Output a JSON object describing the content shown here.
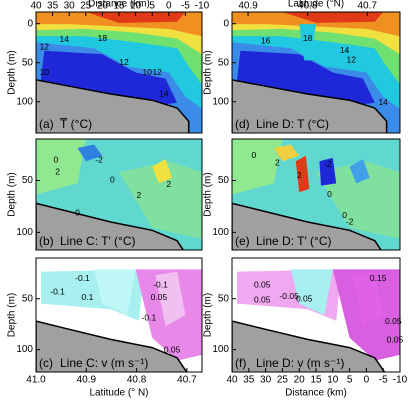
{
  "chart_data": [
    {
      "type": "contour",
      "panel_label": "(a)",
      "title": "T̅ (°C)",
      "x_label": "Distance (km)",
      "xlim": [
        40,
        -10
      ],
      "xticks": [
        40,
        35,
        30,
        25,
        20,
        15,
        10,
        5,
        0,
        -5,
        -10
      ],
      "y_label": "Depth (m)",
      "ylim": [
        -15,
        140
      ],
      "yticks": [
        0,
        50,
        100
      ],
      "contour_labels": [
        "14",
        "18",
        "12",
        "10",
        "12",
        "10",
        "12",
        "14"
      ]
    },
    {
      "type": "contour",
      "panel_label": "(d)",
      "title": "Line D: T (°C)",
      "x_label": "Latitude (°N)",
      "xlim": [
        40.927,
        40.645
      ],
      "xticks": [
        40.9,
        40.8,
        40.7
      ],
      "y_label": "Depth (m)",
      "ylim": [
        -15,
        140
      ],
      "yticks": [
        0,
        50,
        100
      ],
      "contour_labels": [
        "16",
        "18",
        "14",
        "12",
        "14"
      ]
    },
    {
      "type": "contour",
      "panel_label": "(b)",
      "title": "Line C: T′ (°C)",
      "y_label": "Depth (m)",
      "ylim": [
        10,
        117
      ],
      "yticks": [
        50,
        100
      ],
      "contour_labels": [
        "0",
        "2",
        "-2",
        "0",
        "2",
        "0",
        "2"
      ]
    },
    {
      "type": "contour",
      "panel_label": "(e)",
      "title": "Line D: T′ (°C)",
      "y_label": "Depth (m)",
      "ylim": [
        10,
        117
      ],
      "yticks": [
        50,
        100
      ],
      "contour_labels": [
        "0",
        "2",
        "2",
        "-2",
        "0",
        "-2",
        "0"
      ]
    },
    {
      "type": "contour",
      "panel_label": "(c)",
      "title": "Line C: v (m s⁻¹)",
      "x_label": "Latitude (° N)",
      "xlim": [
        41.0,
        40.67
      ],
      "xticks": [
        {
          "value": 41.0,
          "label": "41.0"
        },
        40.9,
        40.8,
        40.7
      ],
      "y_label": "Depth (m)",
      "ylim": [
        10,
        122
      ],
      "yticks": [
        50,
        100
      ],
      "contour_labels": [
        "-0.1",
        "-0.1",
        "0.1",
        "-0.1",
        "0.05",
        "-0.1",
        "0.05"
      ]
    },
    {
      "type": "contour",
      "panel_label": "(f)",
      "title": "Line D: v (m s⁻¹)",
      "x_label": "Distance (km)",
      "xlim": [
        40,
        -10
      ],
      "xticks": [
        40,
        35,
        30,
        25,
        20,
        15,
        10,
        5,
        0,
        -5,
        -10
      ],
      "y_label": "Depth (m)",
      "ylim": [
        10,
        122
      ],
      "yticks": [
        50,
        100
      ],
      "contour_labels": [
        "0.05",
        "-0.05",
        "0.05",
        "0.15",
        "0.05",
        "0.05",
        "0.05"
      ]
    }
  ]
}
